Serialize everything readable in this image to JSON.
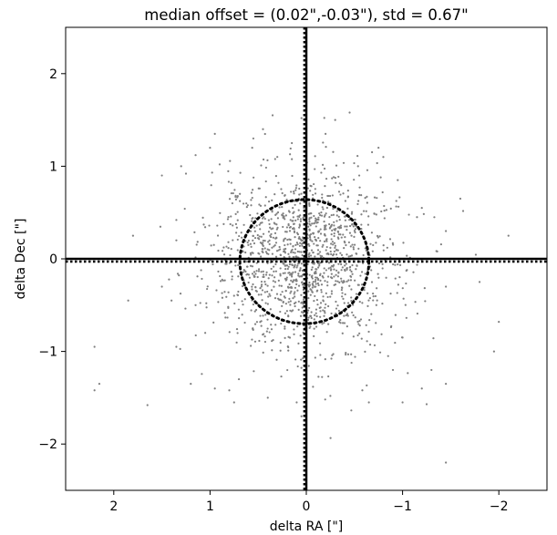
{
  "chart_data": {
    "type": "scatter",
    "title": "median offset = (0.02\",-0.03\"), std =  0.67\"",
    "xlabel": "delta RA [\"]",
    "ylabel": "delta Dec [\"]",
    "xlim": [
      2.5,
      -2.5
    ],
    "ylim": [
      -2.5,
      2.5
    ],
    "x_inverted": true,
    "xticks": [
      2,
      1,
      0,
      -1,
      -2
    ],
    "yticks": [
      -2,
      -1,
      0,
      1,
      2
    ],
    "xtick_labels": [
      "2",
      "1",
      "0",
      "−1",
      "−2"
    ],
    "ytick_labels": [
      "−2",
      "−1",
      "0",
      "1",
      "2"
    ],
    "grid": false,
    "median_offset": {
      "ra": 0.02,
      "dec": -0.03
    },
    "std": 0.67,
    "reference_lines": {
      "x": 0,
      "y": 0,
      "style": "solid"
    },
    "median_lines": {
      "x": 0.02,
      "y": -0.03,
      "style": "dotted"
    },
    "std_circle": {
      "center": [
        0.02,
        -0.03
      ],
      "radius": 0.67,
      "style": "dotted"
    },
    "point_color": "#808080",
    "bulk_point_count": 1400,
    "outlier_points": [
      [
        0.35,
        1.55
      ],
      [
        0.05,
        1.52
      ],
      [
        -0.45,
        1.58
      ],
      [
        -0.3,
        1.5
      ],
      [
        1.0,
        1.2
      ],
      [
        1.15,
        1.12
      ],
      [
        0.95,
        1.35
      ],
      [
        1.25,
        0.92
      ],
      [
        1.3,
        1.0
      ],
      [
        0.55,
        1.3
      ],
      [
        -0.75,
        1.2
      ],
      [
        -0.8,
        1.1
      ],
      [
        -0.95,
        0.85
      ],
      [
        -1.2,
        0.55
      ],
      [
        -1.15,
        0.45
      ],
      [
        -1.6,
        0.65
      ],
      [
        -1.45,
        0.3
      ],
      [
        -2.1,
        0.25
      ],
      [
        1.8,
        0.25
      ],
      [
        1.35,
        0.2
      ],
      [
        1.35,
        0.42
      ],
      [
        1.5,
        0.9
      ],
      [
        -1.8,
        -0.25
      ],
      [
        -1.45,
        -0.3
      ],
      [
        1.5,
        -0.3
      ],
      [
        1.4,
        -0.45
      ],
      [
        1.15,
        -0.5
      ],
      [
        -1.0,
        -0.85
      ],
      [
        -0.85,
        -1.05
      ],
      [
        -1.3,
        -1.2
      ],
      [
        -1.45,
        -1.35
      ],
      [
        -0.9,
        -1.2
      ],
      [
        -1.2,
        -1.4
      ],
      [
        -2.0,
        -0.68
      ],
      [
        -1.95,
        -1.0
      ],
      [
        1.05,
        -0.8
      ],
      [
        1.35,
        -0.95
      ],
      [
        1.2,
        -1.35
      ],
      [
        0.95,
        -1.4
      ],
      [
        0.8,
        -1.42
      ],
      [
        0.7,
        -1.3
      ],
      [
        0.75,
        -1.55
      ],
      [
        0.4,
        -1.5
      ],
      [
        0.1,
        -1.55
      ],
      [
        0.05,
        -1.7
      ],
      [
        -0.25,
        -1.48
      ],
      [
        -0.65,
        -1.55
      ],
      [
        -1.0,
        -1.55
      ],
      [
        -1.25,
        -1.57
      ],
      [
        -1.45,
        -2.2
      ],
      [
        1.65,
        -1.58
      ],
      [
        2.15,
        -1.35
      ],
      [
        2.2,
        -1.42
      ],
      [
        2.2,
        -0.95
      ],
      [
        1.85,
        -0.45
      ],
      [
        0.9,
        1.02
      ],
      [
        0.45,
        1.4
      ],
      [
        0.15,
        1.25
      ],
      [
        -0.2,
        1.35
      ],
      [
        -0.55,
        0.9
      ]
    ]
  }
}
